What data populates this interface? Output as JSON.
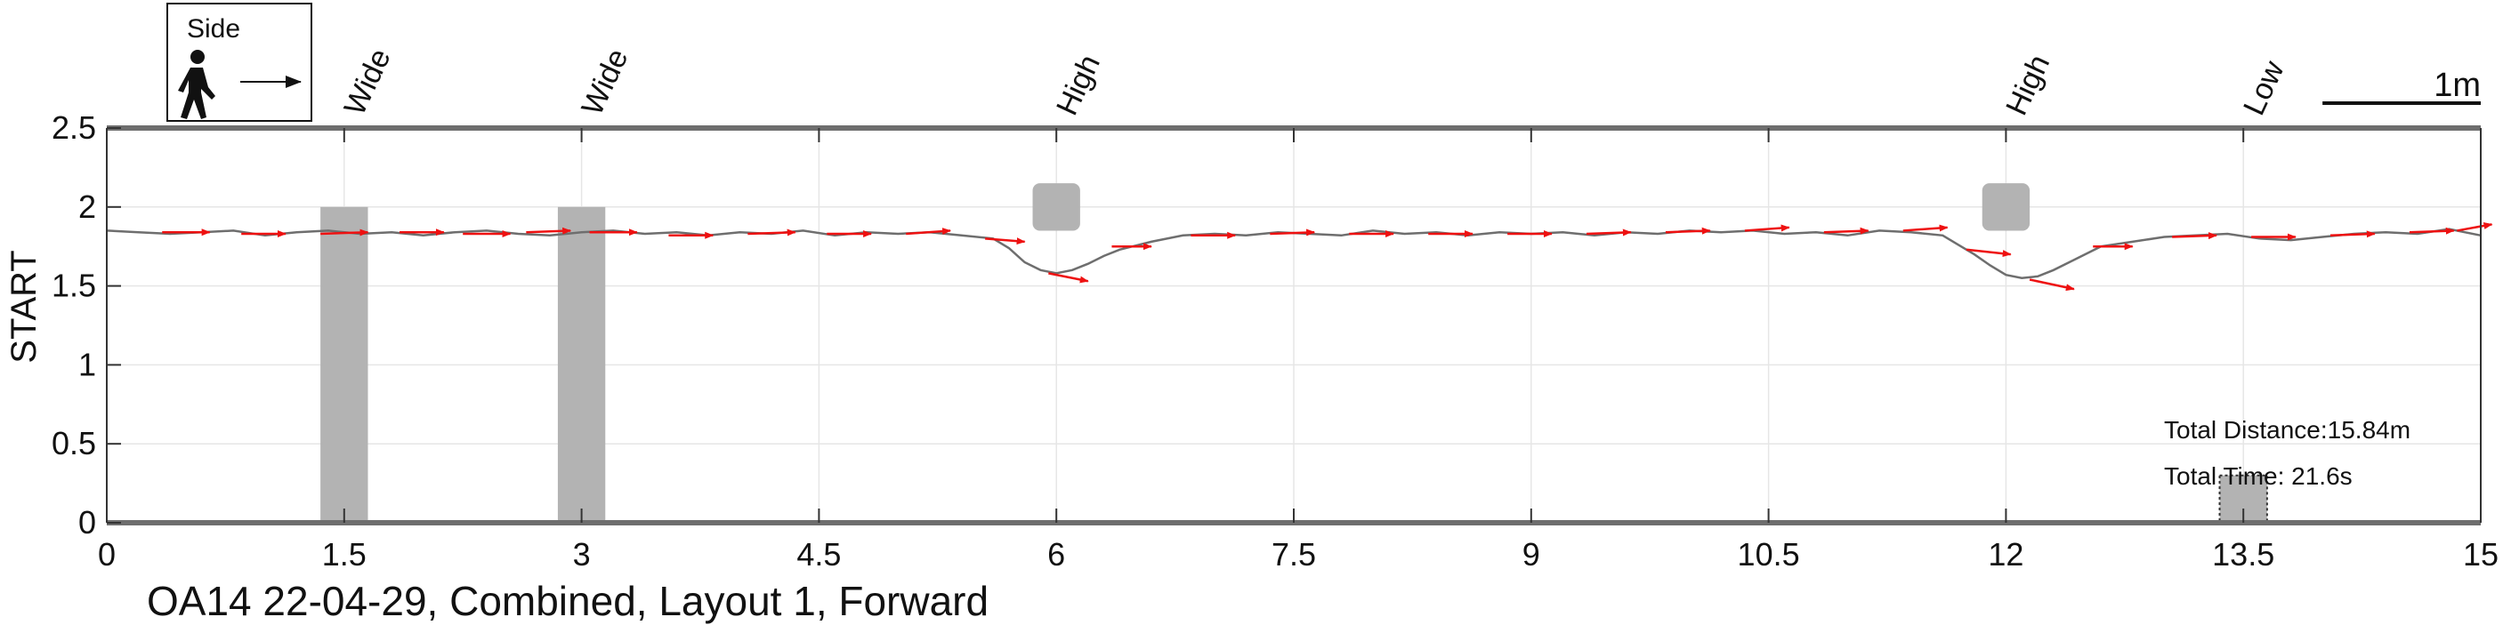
{
  "chart_data": {
    "type": "line",
    "caption": "OA14 22-04-29, Combined, Layout 1, Forward",
    "ylabel": "START",
    "xlim": [
      0,
      15
    ],
    "ylim": [
      0,
      2.5
    ],
    "x_ticks": [
      0,
      1.5,
      3,
      4.5,
      6,
      7.5,
      9,
      10.5,
      12,
      13.5,
      15
    ],
    "x_tick_labels": [
      "0",
      "1.5",
      "3",
      "4.5",
      "6",
      "7.5",
      "9",
      "10.5",
      "12",
      "13.5",
      "15"
    ],
    "y_ticks": [
      0,
      0.5,
      1,
      1.5,
      2,
      2.5
    ],
    "y_tick_labels": [
      "0",
      "0.5",
      "1",
      "1.5",
      "2",
      "2.5"
    ],
    "grid": true,
    "colors": {
      "path": "#6e6e6e",
      "arrows": "#ee1111",
      "obstacle": "#b3b3b3",
      "axis": "#6e6e6e"
    },
    "legend": {
      "label": "Side",
      "position": "top-left",
      "icon": "walking-person-icon"
    },
    "scale_bar": {
      "label": "1m",
      "length": 1
    },
    "stats": {
      "distance": "Total Distance:15.84m",
      "time": "Total Time: 21.6s"
    },
    "obstacles": [
      {
        "label": "Wide",
        "x": 1.5,
        "x0": 1.35,
        "x1": 1.65,
        "y0": 0,
        "y1": 2.0,
        "kind": "wide"
      },
      {
        "label": "Wide",
        "x": 3.0,
        "x0": 2.85,
        "x1": 3.15,
        "y0": 0,
        "y1": 2.0,
        "kind": "wide"
      },
      {
        "label": "High",
        "x": 6.0,
        "x0": 5.85,
        "x1": 6.15,
        "y0": 1.85,
        "y1": 2.15,
        "kind": "high"
      },
      {
        "label": "High",
        "x": 12.0,
        "x0": 11.85,
        "x1": 12.15,
        "y0": 1.85,
        "y1": 2.15,
        "kind": "high"
      },
      {
        "label": "Low",
        "x": 13.5,
        "x0": 13.35,
        "x1": 13.65,
        "y0": 0,
        "y1": 0.3,
        "kind": "low"
      }
    ],
    "series": [
      {
        "x": [
          0,
          0.2,
          0.4,
          0.6,
          0.8,
          1.0,
          1.2,
          1.4,
          1.6,
          1.8,
          2.0,
          2.2,
          2.4,
          2.6,
          2.8,
          3.0,
          3.2,
          3.4,
          3.6,
          3.8,
          4.0,
          4.2,
          4.4,
          4.6,
          4.8,
          5.0,
          5.2,
          5.4,
          5.6,
          5.7,
          5.8,
          5.9,
          6.0,
          6.1,
          6.2,
          6.3,
          6.4,
          6.6,
          6.8,
          7.0,
          7.2,
          7.4,
          7.6,
          7.8,
          8.0,
          8.2,
          8.4,
          8.6,
          8.8,
          9.0,
          9.2,
          9.4,
          9.6,
          9.8,
          10.0,
          10.2,
          10.4,
          10.6,
          10.8,
          11.0,
          11.2,
          11.4,
          11.6,
          11.7,
          11.8,
          11.9,
          12.0,
          12.1,
          12.2,
          12.3,
          12.4,
          12.5,
          12.6,
          12.8,
          13.0,
          13.2,
          13.4,
          13.6,
          13.8,
          14.0,
          14.2,
          14.4,
          14.6,
          14.8,
          15.0
        ],
        "y": [
          1.85,
          1.84,
          1.83,
          1.84,
          1.85,
          1.82,
          1.84,
          1.85,
          1.83,
          1.84,
          1.82,
          1.84,
          1.85,
          1.83,
          1.82,
          1.84,
          1.85,
          1.83,
          1.84,
          1.82,
          1.84,
          1.83,
          1.85,
          1.82,
          1.84,
          1.83,
          1.84,
          1.82,
          1.8,
          1.74,
          1.65,
          1.6,
          1.58,
          1.6,
          1.64,
          1.69,
          1.73,
          1.78,
          1.82,
          1.83,
          1.82,
          1.84,
          1.83,
          1.82,
          1.85,
          1.83,
          1.84,
          1.82,
          1.84,
          1.83,
          1.84,
          1.82,
          1.84,
          1.83,
          1.85,
          1.84,
          1.85,
          1.83,
          1.84,
          1.82,
          1.85,
          1.84,
          1.82,
          1.76,
          1.7,
          1.63,
          1.57,
          1.55,
          1.56,
          1.6,
          1.65,
          1.7,
          1.75,
          1.78,
          1.81,
          1.82,
          1.83,
          1.8,
          1.79,
          1.81,
          1.83,
          1.84,
          1.83,
          1.86,
          1.82
        ]
      }
    ],
    "arrows": [
      {
        "x": 0.35,
        "y": 1.84,
        "dx": 0.3,
        "dy": 0.0
      },
      {
        "x": 0.85,
        "y": 1.83,
        "dx": 0.28,
        "dy": 0.0
      },
      {
        "x": 1.35,
        "y": 1.83,
        "dx": 0.3,
        "dy": 0.01
      },
      {
        "x": 1.85,
        "y": 1.84,
        "dx": 0.28,
        "dy": 0.0
      },
      {
        "x": 2.25,
        "y": 1.83,
        "dx": 0.3,
        "dy": 0.0
      },
      {
        "x": 2.65,
        "y": 1.84,
        "dx": 0.28,
        "dy": 0.01
      },
      {
        "x": 3.05,
        "y": 1.84,
        "dx": 0.3,
        "dy": 0.0
      },
      {
        "x": 3.55,
        "y": 1.82,
        "dx": 0.28,
        "dy": 0.0
      },
      {
        "x": 4.05,
        "y": 1.83,
        "dx": 0.3,
        "dy": 0.01
      },
      {
        "x": 4.55,
        "y": 1.83,
        "dx": 0.28,
        "dy": 0.0
      },
      {
        "x": 5.05,
        "y": 1.83,
        "dx": 0.28,
        "dy": 0.02
      },
      {
        "x": 5.55,
        "y": 1.8,
        "dx": 0.25,
        "dy": -0.02
      },
      {
        "x": 5.95,
        "y": 1.58,
        "dx": 0.25,
        "dy": -0.05
      },
      {
        "x": 6.35,
        "y": 1.75,
        "dx": 0.25,
        "dy": 0.0
      },
      {
        "x": 6.85,
        "y": 1.82,
        "dx": 0.28,
        "dy": 0.0
      },
      {
        "x": 7.35,
        "y": 1.83,
        "dx": 0.28,
        "dy": 0.01
      },
      {
        "x": 7.85,
        "y": 1.83,
        "dx": 0.28,
        "dy": 0.0
      },
      {
        "x": 8.35,
        "y": 1.83,
        "dx": 0.28,
        "dy": 0.0
      },
      {
        "x": 8.85,
        "y": 1.83,
        "dx": 0.28,
        "dy": 0.0
      },
      {
        "x": 9.35,
        "y": 1.83,
        "dx": 0.28,
        "dy": 0.01
      },
      {
        "x": 9.85,
        "y": 1.84,
        "dx": 0.28,
        "dy": 0.01
      },
      {
        "x": 10.35,
        "y": 1.85,
        "dx": 0.28,
        "dy": 0.02
      },
      {
        "x": 10.85,
        "y": 1.84,
        "dx": 0.28,
        "dy": 0.01
      },
      {
        "x": 11.35,
        "y": 1.85,
        "dx": 0.28,
        "dy": 0.02
      },
      {
        "x": 11.75,
        "y": 1.73,
        "dx": 0.28,
        "dy": -0.03
      },
      {
        "x": 12.15,
        "y": 1.54,
        "dx": 0.28,
        "dy": -0.06
      },
      {
        "x": 12.55,
        "y": 1.75,
        "dx": 0.25,
        "dy": 0.0
      },
      {
        "x": 13.05,
        "y": 1.81,
        "dx": 0.28,
        "dy": 0.01
      },
      {
        "x": 13.55,
        "y": 1.81,
        "dx": 0.28,
        "dy": 0.0
      },
      {
        "x": 14.05,
        "y": 1.82,
        "dx": 0.28,
        "dy": 0.01
      },
      {
        "x": 14.55,
        "y": 1.84,
        "dx": 0.28,
        "dy": 0.01
      },
      {
        "x": 14.85,
        "y": 1.85,
        "dx": 0.22,
        "dy": 0.04
      }
    ]
  }
}
